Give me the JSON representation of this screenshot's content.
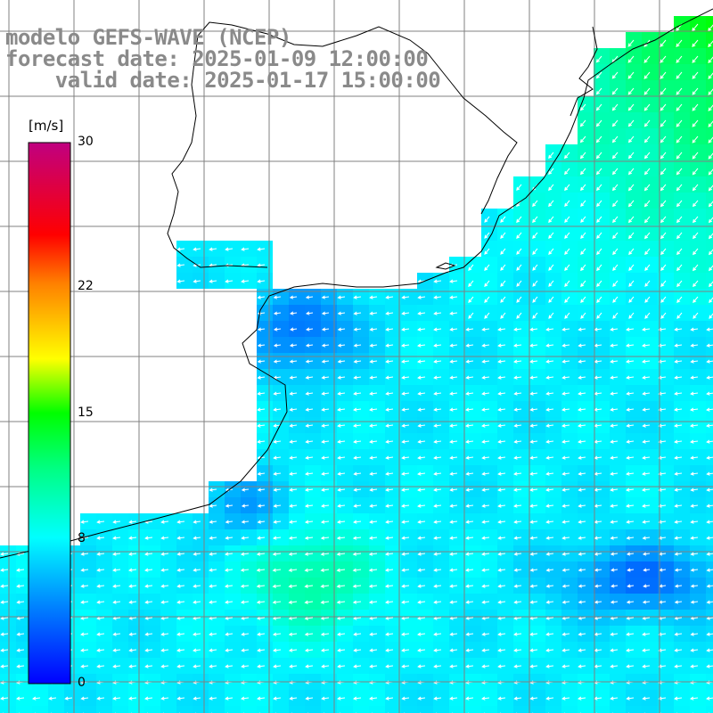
{
  "title": {
    "line1": "modelo GEFS-WAVE (NCEP)",
    "line2": "forecast date: 2025-01-09 12:00:00",
    "line3": "    valid date: 2025-01-17 15:00:00"
  },
  "colorbar": {
    "unit": "[m/s]",
    "ticks": [
      "30",
      "22",
      "15",
      "8",
      "0"
    ],
    "tick_values": [
      30,
      22,
      15,
      8,
      0
    ],
    "min": 0,
    "max": 30,
    "colors": [
      "#0000ff",
      "#0088ff",
      "#00ffff",
      "#00ff00",
      "#ffff00",
      "#ff8800",
      "#ff0000",
      "#c80080"
    ]
  },
  "map": {
    "variable": "wind speed",
    "land_color": "#ffffff",
    "grid_color": "#808080"
  }
}
